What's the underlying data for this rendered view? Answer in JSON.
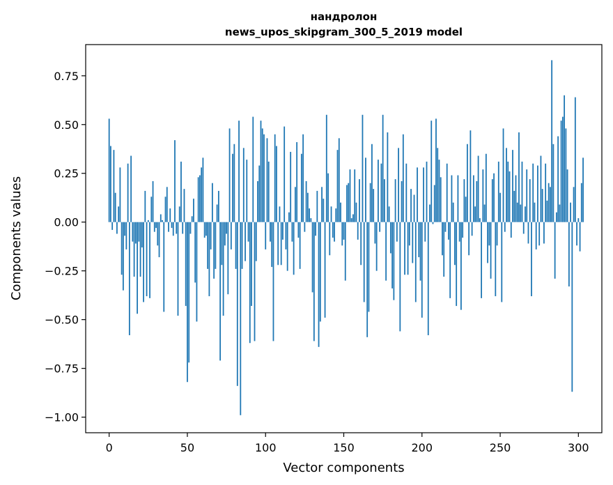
{
  "chart_data": {
    "type": "bar",
    "title": "нандролон",
    "subtitle": "news_upos_skipgram_300_5_2019 model",
    "xlabel": "Vector components",
    "ylabel": "Components values",
    "xlim": [
      -15,
      315
    ],
    "ylim": [
      -1.08,
      0.91
    ],
    "xticks": [
      0,
      50,
      100,
      150,
      200,
      250,
      300
    ],
    "yticks": [
      -1.0,
      -0.75,
      -0.5,
      -0.25,
      0.0,
      0.25,
      0.5,
      0.75
    ],
    "color": "#1f77b4",
    "values": [
      0.53,
      0.39,
      -0.04,
      0.37,
      0.15,
      -0.06,
      0.08,
      0.28,
      -0.27,
      -0.35,
      -0.07,
      -0.14,
      0.3,
      -0.58,
      0.34,
      -0.1,
      -0.28,
      -0.11,
      -0.47,
      -0.1,
      -0.28,
      -0.13,
      -0.41,
      0.16,
      -0.38,
      0.01,
      -0.39,
      0.13,
      0.21,
      -0.05,
      -0.03,
      -0.12,
      -0.18,
      0.04,
      0.01,
      -0.46,
      0.13,
      0.18,
      -0.05,
      0.07,
      -0.03,
      -0.07,
      0.42,
      -0.06,
      -0.48,
      0.08,
      0.31,
      -0.06,
      0.17,
      -0.43,
      -0.82,
      -0.72,
      -0.06,
      0.03,
      0.12,
      -0.31,
      -0.51,
      0.23,
      0.24,
      0.28,
      0.33,
      -0.08,
      -0.07,
      -0.24,
      -0.38,
      -0.14,
      0.2,
      -0.29,
      -0.24,
      0.09,
      0.16,
      -0.71,
      -0.22,
      -0.48,
      -0.12,
      -0.06,
      -0.37,
      0.48,
      -0.14,
      0.35,
      0.4,
      -0.24,
      -0.84,
      0.52,
      -0.99,
      -0.24,
      0.38,
      -0.2,
      0.32,
      -0.1,
      -0.62,
      -0.43,
      0.54,
      -0.61,
      -0.2,
      0.21,
      0.29,
      0.52,
      0.48,
      0.45,
      -0.14,
      0.43,
      0.31,
      -0.1,
      -0.23,
      -0.61,
      0.45,
      0.39,
      -0.22,
      0.08,
      -0.22,
      -0.09,
      0.49,
      -0.14,
      -0.25,
      0.05,
      0.36,
      -0.1,
      -0.27,
      0.18,
      0.41,
      -0.08,
      -0.24,
      0.35,
      0.45,
      -0.05,
      0.21,
      0.15,
      0.07,
      0.02,
      -0.36,
      -0.61,
      -0.07,
      0.16,
      -0.64,
      -0.51,
      0.18,
      0.12,
      -0.49,
      0.55,
      0.25,
      -0.17,
      0.08,
      -0.08,
      -0.1,
      0.07,
      0.37,
      0.43,
      0.1,
      -0.12,
      -0.09,
      -0.3,
      0.19,
      0.2,
      0.27,
      0.02,
      0.04,
      0.27,
      0.1,
      -0.09,
      0.22,
      -0.22,
      0.55,
      -0.41,
      0.33,
      -0.59,
      -0.46,
      0.2,
      0.4,
      0.17,
      -0.11,
      -0.25,
      0.32,
      -0.05,
      0.3,
      0.55,
      0.22,
      -0.3,
      0.46,
      0.08,
      -0.16,
      -0.34,
      -0.4,
      0.22,
      -0.1,
      0.38,
      -0.56,
      0.21,
      0.45,
      -0.27,
      0.3,
      -0.27,
      -0.12,
      0.17,
      -0.21,
      0.14,
      -0.41,
      0.28,
      -0.18,
      -0.3,
      -0.49,
      0.28,
      -0.1,
      0.31,
      -0.58,
      0.09,
      0.52,
      -0.01,
      0.19,
      0.53,
      0.38,
      0.32,
      0.23,
      -0.17,
      -0.28,
      -0.05,
      0.3,
      -0.09,
      -0.39,
      0.24,
      0.1,
      -0.22,
      -0.43,
      0.24,
      -0.1,
      -0.45,
      -0.08,
      0.22,
      0.13,
      0.4,
      -0.17,
      0.47,
      -0.07,
      0.24,
      0.08,
      0.21,
      0.34,
      0.02,
      -0.39,
      0.27,
      0.09,
      0.35,
      -0.21,
      -0.12,
      -0.29,
      0.22,
      0.25,
      -0.38,
      -0.12,
      0.31,
      0.15,
      -0.41,
      0.48,
      -0.05,
      0.38,
      0.31,
      0.26,
      -0.08,
      0.37,
      0.16,
      0.24,
      0.1,
      0.46,
      0.09,
      0.31,
      -0.06,
      0.08,
      0.27,
      -0.11,
      0.22,
      -0.38,
      0.3,
      0.1,
      -0.14,
      0.29,
      -0.12,
      0.34,
      0.17,
      -0.11,
      0.3,
      0.11,
      0.2,
      0.18,
      0.83,
      0.4,
      -0.29,
      0.05,
      0.44,
      0.09,
      0.52,
      0.54,
      0.65,
      0.48,
      0.27,
      -0.33,
      0.1,
      -0.87,
      0.18,
      0.64,
      -0.12,
      0.02,
      -0.15,
      0.2,
      0.33
    ]
  }
}
